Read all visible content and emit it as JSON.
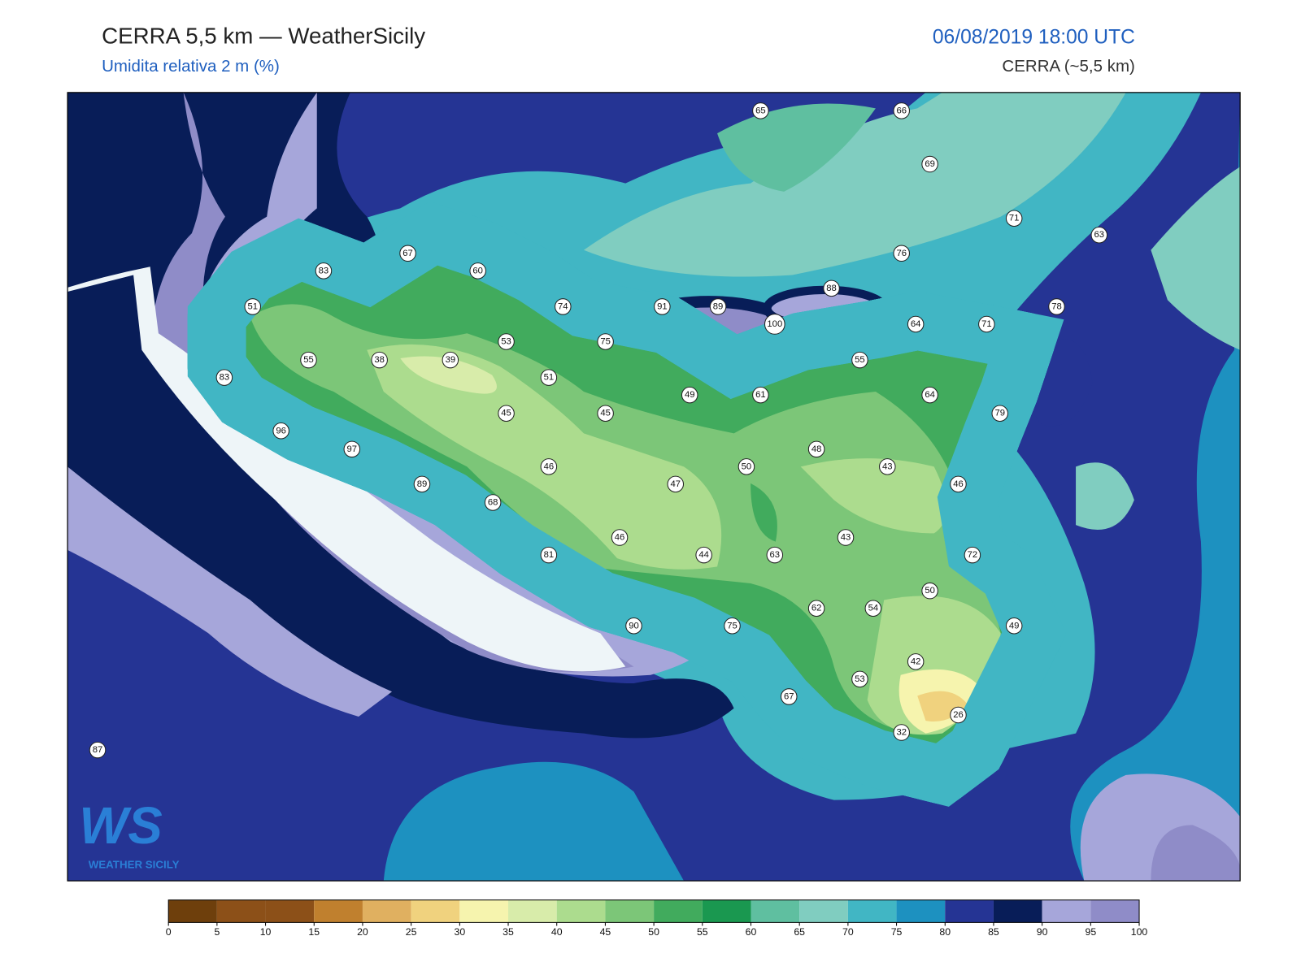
{
  "header": {
    "title": "CERRA 5,5 km — WeatherSicily",
    "subtitle": "Umidita relativa 2 m (%)",
    "datetime": "06/08/2019 18:00 UTC",
    "model": "CERRA (~5,5 km)"
  },
  "logo": {
    "mark": "WS",
    "text": "WEATHER SICILY"
  },
  "stations": [
    65,
    66,
    69,
    71,
    63,
    67,
    60,
    83,
    76,
    88,
    51,
    74,
    91,
    89,
    100,
    64,
    71,
    78,
    75,
    53,
    55,
    38,
    39,
    55,
    83,
    51,
    49,
    61,
    64,
    79,
    45,
    45,
    96,
    97,
    48,
    46,
    50,
    43,
    47,
    89,
    46,
    68,
    43,
    46,
    81,
    44,
    63,
    72,
    50,
    62,
    54,
    90,
    75,
    49,
    42,
    53,
    67,
    26,
    32,
    87
  ],
  "colorbar": {
    "ticks": [
      0,
      5,
      10,
      15,
      20,
      25,
      30,
      35,
      40,
      45,
      50,
      55,
      60,
      65,
      70,
      75,
      80,
      85,
      90,
      95,
      100
    ],
    "colors": [
      "#6e3f0c",
      "#8c5018",
      "#8c5018",
      "#c0802e",
      "#e0b060",
      "#f0d27e",
      "#f6f4ae",
      "#d8ecaa",
      "#acdc8e",
      "#7cc678",
      "#41ab5d",
      "#1a9850",
      "#5fbfa0",
      "#80cdc0",
      "#41b6c4",
      "#1d91c0",
      "#253494",
      "#081d58",
      "#a6a6da",
      "#8f8cc8"
    ]
  }
}
